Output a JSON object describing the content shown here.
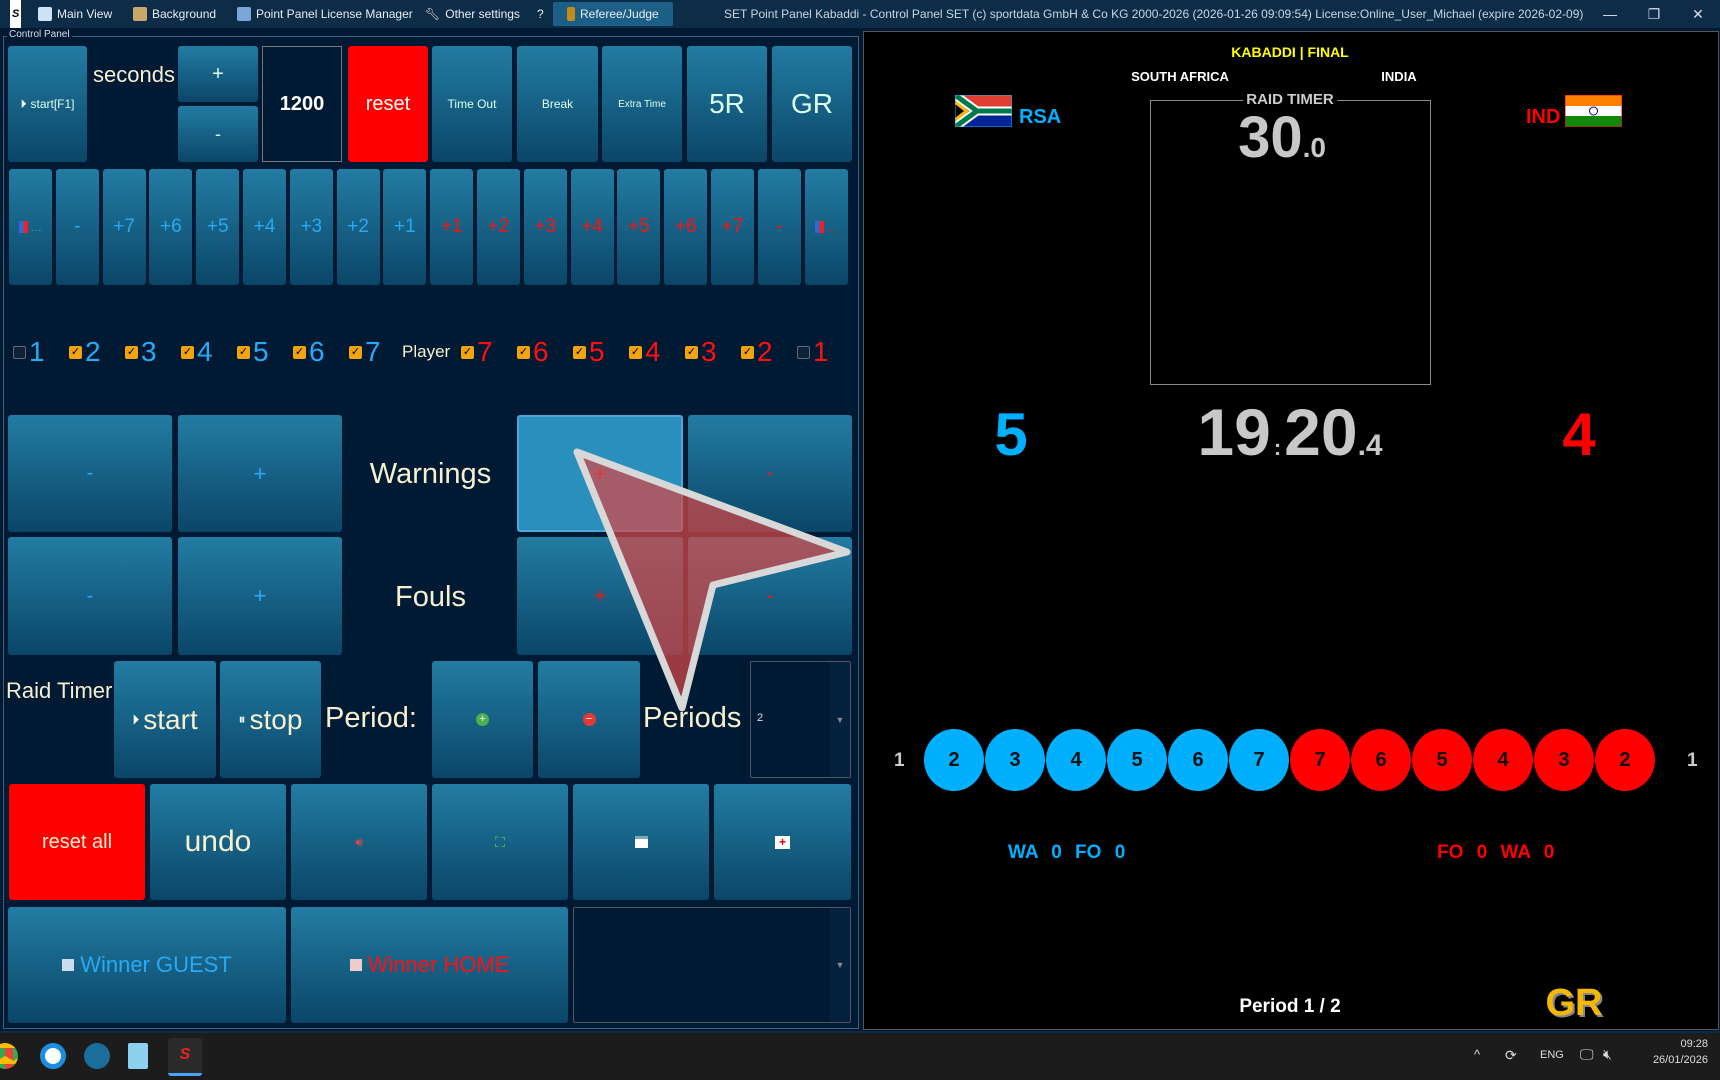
{
  "titlebar": {
    "menu": [
      {
        "label": "Main View",
        "icon": "window-icon"
      },
      {
        "label": "Background",
        "icon": "paint-icon"
      },
      {
        "label": "Point Panel License Manager",
        "icon": "license-icon"
      },
      {
        "label": "Other settings",
        "icon": "wrench-icon"
      },
      {
        "label": "?",
        "icon": ""
      },
      {
        "label": "Referee/Judge",
        "icon": "referee-icon"
      }
    ],
    "title": "SET Point Panel Kabaddi - Control Panel SET (c) sportdata GmbH & Co KG 2000-2026 (2026-01-26 09:09:54) License:Online_User_Michael (expire 2026-02-09)",
    "min": "—",
    "max": "❐",
    "close": "✕"
  },
  "control_panel": {
    "group_label": "Control Panel",
    "row1": {
      "start": "start[F1]",
      "seconds": "seconds",
      "plus": "+",
      "minus": "-",
      "time_value": "1200",
      "reset": "reset",
      "timeout": "Time Out",
      "break": "Break",
      "extra_time": "Extra Time",
      "five_r": "5R",
      "gr": "GR"
    },
    "score_buttons": [
      {
        "label": "…",
        "color": "#29a9f5",
        "icon": "team-icon"
      },
      {
        "label": "-",
        "color": "#29a9f5"
      },
      {
        "label": "+7",
        "color": "#29a9f5"
      },
      {
        "label": "+6",
        "color": "#29a9f5"
      },
      {
        "label": "+5",
        "color": "#29a9f5"
      },
      {
        "label": "+4",
        "color": "#29a9f5"
      },
      {
        "label": "+3",
        "color": "#29a9f5"
      },
      {
        "label": "+2",
        "color": "#29a9f5"
      },
      {
        "label": "+1",
        "color": "#29a9f5"
      },
      {
        "label": "+1",
        "color": "#ff1010"
      },
      {
        "label": "+2",
        "color": "#ff1010"
      },
      {
        "label": "+3",
        "color": "#ff1010"
      },
      {
        "label": "+4",
        "color": "#ff1010"
      },
      {
        "label": "+5",
        "color": "#ff1010"
      },
      {
        "label": "+6",
        "color": "#ff1010"
      },
      {
        "label": "+7",
        "color": "#ff1010"
      },
      {
        "label": "-",
        "color": "#ff1010"
      },
      {
        "label": "…",
        "color": "#ff1010",
        "icon": "team-icon"
      }
    ],
    "players_label": "Player",
    "guest_players": [
      {
        "n": "1",
        "checked": false
      },
      {
        "n": "2",
        "checked": true
      },
      {
        "n": "3",
        "checked": true
      },
      {
        "n": "4",
        "checked": true
      },
      {
        "n": "5",
        "checked": true
      },
      {
        "n": "6",
        "checked": true
      },
      {
        "n": "7",
        "checked": true
      }
    ],
    "home_players": [
      {
        "n": "7",
        "checked": true
      },
      {
        "n": "6",
        "checked": true
      },
      {
        "n": "5",
        "checked": true
      },
      {
        "n": "4",
        "checked": true
      },
      {
        "n": "3",
        "checked": true
      },
      {
        "n": "2",
        "checked": true
      },
      {
        "n": "1",
        "checked": false
      }
    ],
    "warnings": {
      "label": "Warnings",
      "guest_minus": "-",
      "guest_plus": "+",
      "home_plus": "+",
      "home_minus": "-"
    },
    "fouls": {
      "label": "Fouls",
      "guest_minus": "-",
      "guest_plus": "+",
      "home_plus": "+",
      "home_minus": "-"
    },
    "raid_timer": {
      "label": "Raid Timer",
      "start": "start",
      "stop": "stop"
    },
    "period": {
      "label": "Period:",
      "periods_label": "Periods",
      "periods_value": "2"
    },
    "actions": {
      "reset_all": "reset all",
      "undo": "undo"
    },
    "winner_guest": "Winner GUEST",
    "winner_home": "Winner HOME",
    "winner_select": ""
  },
  "scoreboard": {
    "event": "KABADDI | FINAL",
    "guest_name": "SOUTH AFRICA",
    "home_name": "INDIA",
    "guest_code": "RSA",
    "home_code": "IND",
    "raid_timer_label": "RAID TIMER",
    "raid_timer_main": "30",
    "raid_timer_tenths": ".0",
    "guest_score": "5",
    "home_score": "4",
    "clock_min": "19",
    "clock_sep": ":",
    "clock_sec": "20",
    "clock_tenths": ".4",
    "guest_out_player": "1",
    "home_out_player": "1",
    "guest_players": [
      "2",
      "3",
      "4",
      "5",
      "6",
      "7"
    ],
    "home_players": [
      "7",
      "6",
      "5",
      "4",
      "3",
      "2"
    ],
    "guest_stats": {
      "wa_label": "WA",
      "wa": "0",
      "fo_label": "FO",
      "fo": "0"
    },
    "home_stats": {
      "fo_label": "FO",
      "fo": "0",
      "wa_label": "WA",
      "wa": "0"
    },
    "period": "Period 1 / 2",
    "gr": "GR",
    "colors": {
      "guest": "#00b0ff",
      "home": "#ff0000",
      "event": "#ffff00",
      "gr": "#f5b800"
    }
  },
  "taskbar": {
    "lang": "ENG",
    "time": "09:28",
    "date": "26/01/2026",
    "chevron": "^"
  }
}
